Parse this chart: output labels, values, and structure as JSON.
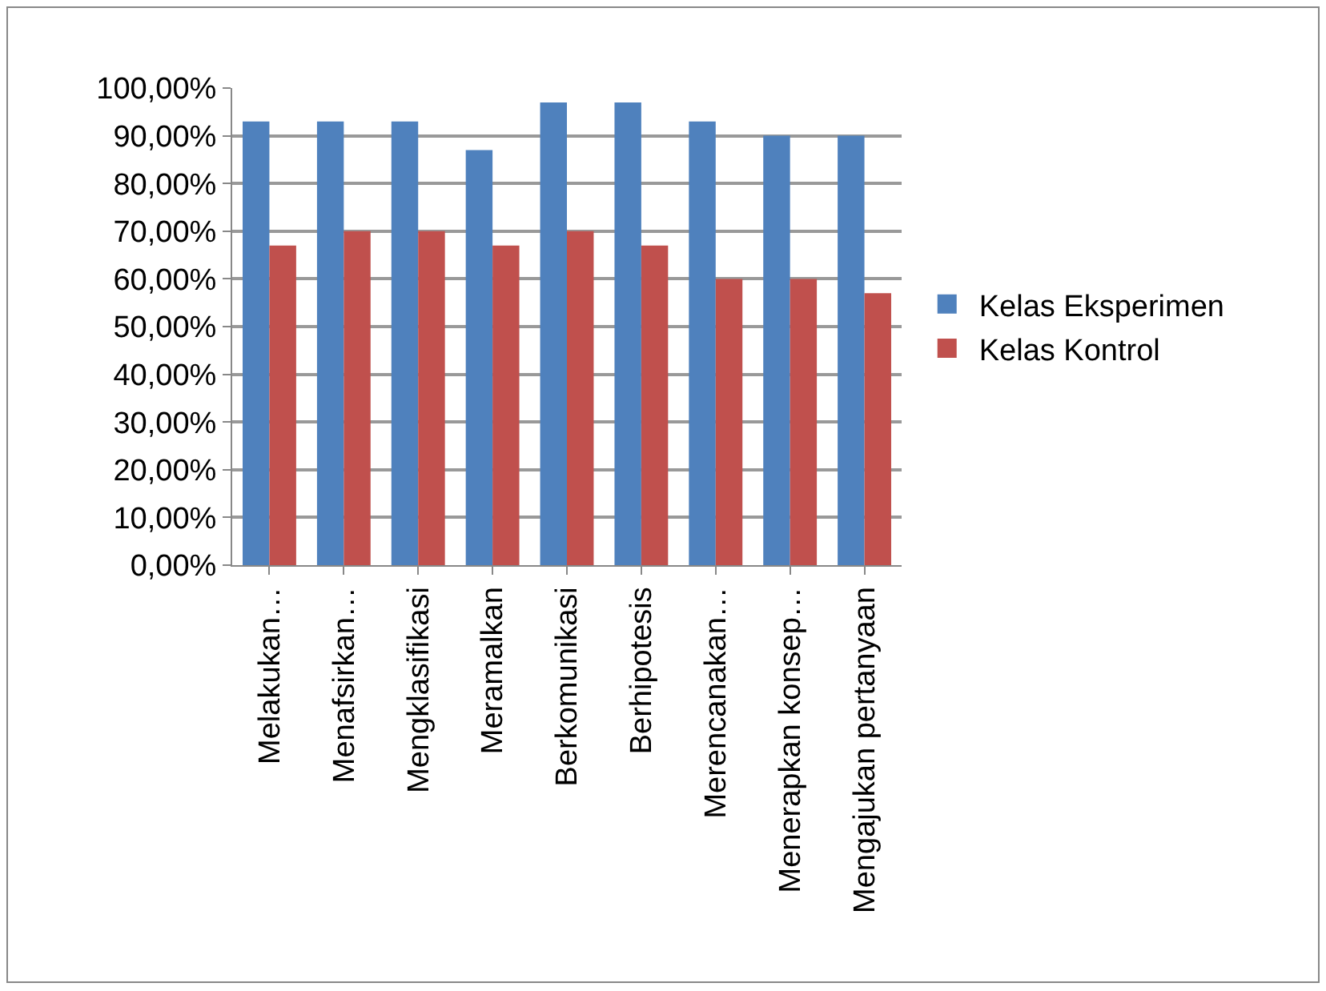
{
  "chart_data": {
    "type": "bar",
    "categories": [
      "Melakukan…",
      "Menafsirkan…",
      "Mengklasifikasi",
      "Meramalkan",
      "Berkomunikasi",
      "Berhipotesis",
      "Merencanakan…",
      "Menerapkan konsep…",
      "Mengajukan pertanyaan"
    ],
    "series": [
      {
        "name": "Kelas Eksperimen",
        "color": "#4f81bd",
        "values": [
          93,
          93,
          93,
          87,
          97,
          97,
          93,
          90,
          90
        ]
      },
      {
        "name": "Kelas Kontrol",
        "color": "#c0504d",
        "values": [
          67,
          70,
          70,
          67,
          70,
          67,
          60,
          60,
          57
        ]
      }
    ],
    "ylim": [
      0,
      100
    ],
    "yticks": [
      {
        "value": 0,
        "label": "0,00%"
      },
      {
        "value": 10,
        "label": "10,00%"
      },
      {
        "value": 20,
        "label": "20,00%"
      },
      {
        "value": 30,
        "label": "30,00%"
      },
      {
        "value": 40,
        "label": "40,00%"
      },
      {
        "value": 50,
        "label": "50,00%"
      },
      {
        "value": 60,
        "label": "60,00%"
      },
      {
        "value": 70,
        "label": "70,00%"
      },
      {
        "value": 80,
        "label": "80,00%"
      },
      {
        "value": 90,
        "label": "90,00%"
      },
      {
        "value": 100,
        "label": "100,00%"
      }
    ],
    "grid": "y",
    "legend": "right"
  }
}
